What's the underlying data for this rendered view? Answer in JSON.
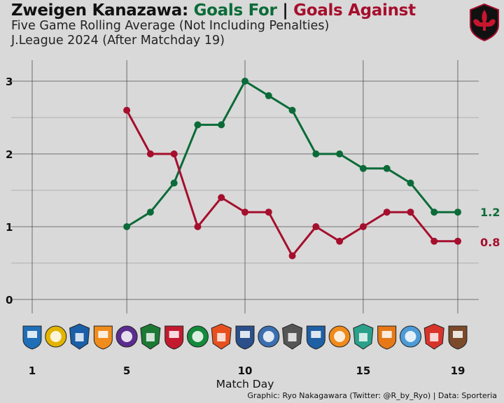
{
  "title": {
    "team": "Zweigen Kanazawa:",
    "goals_for": "Goals For",
    "separator": "|",
    "goals_against": "Goals Against"
  },
  "subtitle_1": "Five Game Rolling Average (Not Including Penalties)",
  "subtitle_2": "J.League 2024 (After Matchday 19)",
  "credit": "Graphic: Ryo Nakagawara (Twitter: @R_by_Ryo) | Data: Sporteria",
  "colors": {
    "goals_for": "#0b6b38",
    "goals_against": "#a50f2d",
    "background": "#d9d9d9",
    "grid": "#444444"
  },
  "opponent_logos": [
    {
      "match_day": 1,
      "icon": "blue-shield-crest-icon",
      "color": "#1f6fb8"
    },
    {
      "match_day": 2,
      "icon": "yellow-black-crest-icon",
      "color": "#e2b400"
    },
    {
      "match_day": 3,
      "icon": "blue-round-crest-icon",
      "color": "#1a5fa8"
    },
    {
      "match_day": 4,
      "icon": "orange-shield-crest-icon",
      "color": "#f08c1c"
    },
    {
      "match_day": 5,
      "icon": "purple-red-crest-icon",
      "color": "#5b2c8f"
    },
    {
      "match_day": 6,
      "icon": "green-black-crest-icon",
      "color": "#1d7a35"
    },
    {
      "match_day": 7,
      "icon": "red-yellow-crest-icon",
      "color": "#c41a2f"
    },
    {
      "match_day": 8,
      "icon": "green-crest-icon",
      "color": "#148a3c"
    },
    {
      "match_day": 9,
      "icon": "orange-red-crest-icon",
      "color": "#e7501e"
    },
    {
      "match_day": 10,
      "icon": "navy-round-crest-icon",
      "color": "#2a4f8a"
    },
    {
      "match_day": 11,
      "icon": "blue-white-crest-icon",
      "color": "#3a6fb0"
    },
    {
      "match_day": 12,
      "icon": "grulla-crest-icon",
      "color": "#555555"
    },
    {
      "match_day": 13,
      "icon": "bird-crest-icon",
      "color": "#1f5fa3"
    },
    {
      "match_day": 14,
      "icon": "nagano-parceiro-crest-icon",
      "color": "#f08a1a"
    },
    {
      "match_day": 15,
      "icon": "teal-green-crest-icon",
      "color": "#2ba08a"
    },
    {
      "match_day": 16,
      "icon": "orange-ball-crest-icon",
      "color": "#e67817"
    },
    {
      "match_day": 17,
      "icon": "light-blue-crest-icon",
      "color": "#4d9bd6"
    },
    {
      "match_day": 18,
      "icon": "red-gold-crest-icon",
      "color": "#d8332a"
    },
    {
      "match_day": 19,
      "icon": "brown-crest-icon",
      "color": "#7a4a2a"
    }
  ],
  "chart_data": {
    "type": "line",
    "x": [
      5,
      6,
      7,
      8,
      9,
      10,
      11,
      12,
      13,
      14,
      15,
      16,
      17,
      18,
      19
    ],
    "xlabel": "Match Day",
    "ylabel": "",
    "xticks": [
      1,
      5,
      10,
      15,
      19
    ],
    "yticks": [
      0,
      1,
      2,
      3
    ],
    "xlim": [
      1,
      19
    ],
    "ylim": [
      0,
      3
    ],
    "grid": true,
    "series": [
      {
        "name": "Goals For",
        "color": "#0b6b38",
        "values": [
          1.0,
          1.2,
          1.6,
          2.4,
          2.4,
          3.0,
          2.8,
          2.6,
          2.0,
          2.0,
          1.8,
          1.8,
          1.6,
          1.2,
          1.2
        ],
        "end_label": "1.2"
      },
      {
        "name": "Goals Against",
        "color": "#a50f2d",
        "values": [
          2.6,
          2.0,
          2.0,
          1.0,
          1.4,
          1.2,
          1.2,
          0.6,
          1.0,
          0.8,
          1.0,
          1.2,
          1.2,
          0.8,
          0.8
        ],
        "end_label": "0.8"
      }
    ]
  }
}
